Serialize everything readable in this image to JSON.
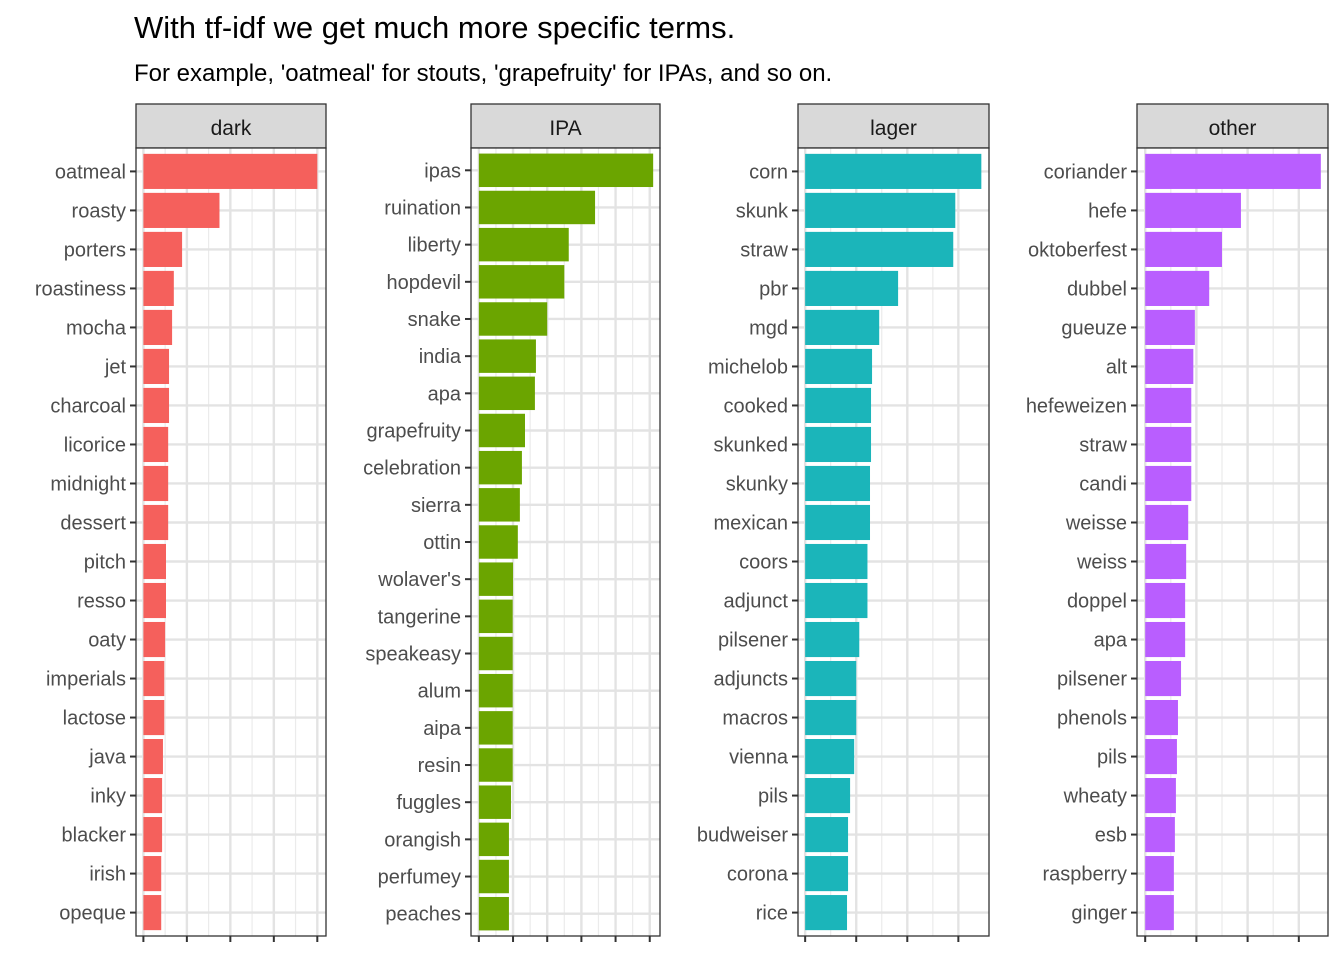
{
  "chart_data": {
    "type": "bar",
    "orientation": "horizontal",
    "title": "With tf-idf we get much more specific terms.",
    "subtitle": "For example, 'oatmeal' for stouts, 'grapefruity' for IPAs, and so on.",
    "xlabel": "",
    "ylabel": "",
    "grid": true,
    "legend": "none",
    "facets": [
      {
        "name": "dark",
        "color": "#F5605C",
        "xlim": [
          -0.17,
          4.2
        ],
        "ticks": [
          0,
          1,
          2,
          3,
          4
        ],
        "categories": [
          "oatmeal",
          "roasty",
          "porters",
          "roastiness",
          "mocha",
          "jet",
          "charcoal",
          "licorice",
          "midnight",
          "dessert",
          "pitch",
          "resso",
          "oaty",
          "imperials",
          "lactose",
          "java",
          "inky",
          "blacker",
          "irish",
          "opeque"
        ],
        "values": [
          4.0,
          1.75,
          0.89,
          0.7,
          0.66,
          0.59,
          0.59,
          0.57,
          0.57,
          0.57,
          0.52,
          0.52,
          0.5,
          0.48,
          0.48,
          0.45,
          0.43,
          0.43,
          0.41,
          0.41
        ]
      },
      {
        "name": "IPA",
        "color": "#6BA500",
        "xlim": [
          -0.23,
          5.3
        ],
        "ticks": [
          0,
          1,
          2,
          3,
          4,
          5
        ],
        "categories": [
          "ipas",
          "ruination",
          "liberty",
          "hopdevil",
          "snake",
          "india",
          "apa",
          "grapefruity",
          "celebration",
          "sierra",
          "ottin",
          "wolaver's",
          "tangerine",
          "speakeasy",
          "alum",
          "aipa",
          "resin",
          "fuggles",
          "orangish",
          "perfumey",
          "peaches"
        ],
        "values": [
          5.1,
          3.4,
          2.63,
          2.5,
          2.0,
          1.67,
          1.64,
          1.35,
          1.26,
          1.2,
          1.14,
          1.0,
          0.99,
          0.99,
          0.99,
          0.99,
          0.99,
          0.94,
          0.88,
          0.88,
          0.88
        ]
      },
      {
        "name": "lager",
        "color": "#1BB5BA",
        "xlim": [
          -0.14,
          3.6
        ],
        "ticks": [
          0,
          1,
          2,
          3
        ],
        "categories": [
          "corn",
          "skunk",
          "straw",
          "pbr",
          "mgd",
          "michelob",
          "cooked",
          "skunked",
          "skunky",
          "mexican",
          "coors",
          "adjunct",
          "pilsener",
          "adjuncts",
          "macros",
          "vienna",
          "pils",
          "budweiser",
          "corona",
          "rice"
        ],
        "values": [
          3.45,
          2.94,
          2.9,
          1.82,
          1.45,
          1.31,
          1.29,
          1.29,
          1.27,
          1.27,
          1.22,
          1.22,
          1.06,
          1.0,
          1.0,
          0.96,
          0.88,
          0.84,
          0.84,
          0.82
        ]
      },
      {
        "name": "other",
        "color": "#B95EFF",
        "xlim": [
          -0.16,
          3.57
        ],
        "ticks": [
          0,
          1,
          2,
          3
        ],
        "categories": [
          "coriander",
          "hefe",
          "oktoberfest",
          "dubbel",
          "gueuze",
          "alt",
          "hefeweizen",
          "straw",
          "candi",
          "weisse",
          "weiss",
          "doppel",
          "apa",
          "pilsener",
          "phenols",
          "pils",
          "wheaty",
          "esb",
          "raspberry",
          "ginger"
        ],
        "values": [
          3.43,
          1.87,
          1.5,
          1.25,
          0.97,
          0.94,
          0.9,
          0.9,
          0.9,
          0.84,
          0.8,
          0.78,
          0.78,
          0.7,
          0.64,
          0.62,
          0.6,
          0.58,
          0.56,
          0.56
        ]
      }
    ]
  }
}
